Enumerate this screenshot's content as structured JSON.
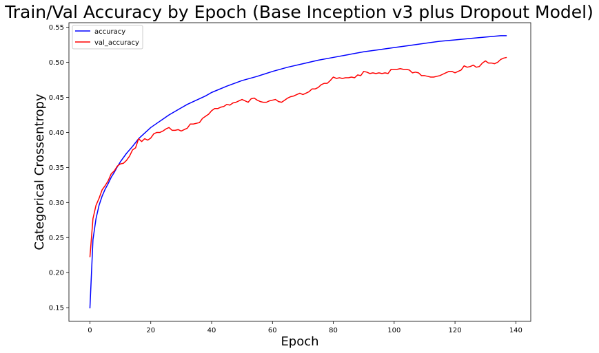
{
  "chart_data": {
    "type": "line",
    "title": "Train/Val Accuracy by Epoch (Base Inception v3 plus Dropout Model)",
    "xlabel": "Epoch",
    "ylabel": "Categorical Crossentropy",
    "xlim": [
      -6.9,
      144.9
    ],
    "ylim": [
      0.1305,
      0.5565
    ],
    "xticks": [
      0,
      20,
      40,
      60,
      80,
      100,
      120,
      140
    ],
    "yticks": [
      0.15,
      0.2,
      0.25,
      0.3,
      0.35,
      0.4,
      0.45,
      0.5,
      0.55
    ],
    "grid": false,
    "legend_position": "top-left",
    "series": [
      {
        "name": "accuracy",
        "color": "#0000ff",
        "points": [
          [
            0,
            0.149
          ],
          [
            1,
            0.247
          ],
          [
            2,
            0.277
          ],
          [
            3,
            0.296
          ],
          [
            4,
            0.309
          ],
          [
            5,
            0.319
          ],
          [
            6,
            0.327
          ],
          [
            7,
            0.336
          ],
          [
            8,
            0.343
          ],
          [
            9,
            0.351
          ],
          [
            10,
            0.358
          ],
          [
            12,
            0.37
          ],
          [
            14,
            0.38
          ],
          [
            16,
            0.391
          ],
          [
            18,
            0.399
          ],
          [
            20,
            0.407
          ],
          [
            22,
            0.413
          ],
          [
            24,
            0.419
          ],
          [
            26,
            0.425
          ],
          [
            28,
            0.43
          ],
          [
            30,
            0.435
          ],
          [
            32,
            0.44
          ],
          [
            35,
            0.446
          ],
          [
            38,
            0.452
          ],
          [
            40,
            0.457
          ],
          [
            45,
            0.466
          ],
          [
            50,
            0.474
          ],
          [
            55,
            0.48
          ],
          [
            60,
            0.487
          ],
          [
            65,
            0.493
          ],
          [
            70,
            0.498
          ],
          [
            75,
            0.503
          ],
          [
            80,
            0.507
          ],
          [
            85,
            0.511
          ],
          [
            90,
            0.515
          ],
          [
            95,
            0.518
          ],
          [
            100,
            0.521
          ],
          [
            105,
            0.524
          ],
          [
            110,
            0.527
          ],
          [
            115,
            0.53
          ],
          [
            120,
            0.532
          ],
          [
            125,
            0.534
          ],
          [
            130,
            0.536
          ],
          [
            135,
            0.538
          ],
          [
            137,
            0.538
          ]
        ]
      },
      {
        "name": "val_accuracy",
        "color": "#ff0000",
        "points": [
          [
            0,
            0.222
          ],
          [
            1,
            0.277
          ],
          [
            2,
            0.296
          ],
          [
            3,
            0.306
          ],
          [
            4,
            0.318
          ],
          [
            5,
            0.324
          ],
          [
            6,
            0.331
          ],
          [
            7,
            0.341
          ],
          [
            8,
            0.345
          ],
          [
            9,
            0.352
          ],
          [
            10,
            0.355
          ],
          [
            11,
            0.356
          ],
          [
            12,
            0.36
          ],
          [
            13,
            0.366
          ],
          [
            14,
            0.375
          ],
          [
            15,
            0.378
          ],
          [
            16,
            0.391
          ],
          [
            17,
            0.387
          ],
          [
            18,
            0.391
          ],
          [
            19,
            0.389
          ],
          [
            20,
            0.392
          ],
          [
            21,
            0.398
          ],
          [
            22,
            0.4
          ],
          [
            23,
            0.4
          ],
          [
            24,
            0.402
          ],
          [
            25,
            0.405
          ],
          [
            26,
            0.407
          ],
          [
            27,
            0.403
          ],
          [
            28,
            0.403
          ],
          [
            29,
            0.404
          ],
          [
            30,
            0.402
          ],
          [
            31,
            0.404
          ],
          [
            32,
            0.406
          ],
          [
            33,
            0.412
          ],
          [
            34,
            0.412
          ],
          [
            35,
            0.413
          ],
          [
            36,
            0.414
          ],
          [
            37,
            0.42
          ],
          [
            38,
            0.423
          ],
          [
            39,
            0.426
          ],
          [
            40,
            0.431
          ],
          [
            41,
            0.434
          ],
          [
            42,
            0.434
          ],
          [
            43,
            0.436
          ],
          [
            44,
            0.437
          ],
          [
            45,
            0.44
          ],
          [
            46,
            0.439
          ],
          [
            47,
            0.442
          ],
          [
            48,
            0.443
          ],
          [
            49,
            0.445
          ],
          [
            50,
            0.447
          ],
          [
            51,
            0.445
          ],
          [
            52,
            0.443
          ],
          [
            53,
            0.448
          ],
          [
            54,
            0.449
          ],
          [
            55,
            0.446
          ],
          [
            56,
            0.444
          ],
          [
            57,
            0.443
          ],
          [
            58,
            0.443
          ],
          [
            59,
            0.445
          ],
          [
            60,
            0.446
          ],
          [
            61,
            0.447
          ],
          [
            62,
            0.444
          ],
          [
            63,
            0.443
          ],
          [
            64,
            0.446
          ],
          [
            65,
            0.449
          ],
          [
            66,
            0.451
          ],
          [
            67,
            0.452
          ],
          [
            68,
            0.454
          ],
          [
            69,
            0.456
          ],
          [
            70,
            0.454
          ],
          [
            71,
            0.456
          ],
          [
            72,
            0.458
          ],
          [
            73,
            0.462
          ],
          [
            74,
            0.462
          ],
          [
            75,
            0.464
          ],
          [
            76,
            0.468
          ],
          [
            77,
            0.47
          ],
          [
            78,
            0.47
          ],
          [
            79,
            0.474
          ],
          [
            80,
            0.479
          ],
          [
            81,
            0.477
          ],
          [
            82,
            0.478
          ],
          [
            83,
            0.477
          ],
          [
            84,
            0.478
          ],
          [
            85,
            0.478
          ],
          [
            86,
            0.479
          ],
          [
            87,
            0.478
          ],
          [
            88,
            0.482
          ],
          [
            89,
            0.481
          ],
          [
            90,
            0.487
          ],
          [
            91,
            0.486
          ],
          [
            92,
            0.484
          ],
          [
            93,
            0.485
          ],
          [
            94,
            0.484
          ],
          [
            95,
            0.485
          ],
          [
            96,
            0.484
          ],
          [
            97,
            0.485
          ],
          [
            98,
            0.484
          ],
          [
            99,
            0.49
          ],
          [
            100,
            0.49
          ],
          [
            101,
            0.49
          ],
          [
            102,
            0.491
          ],
          [
            103,
            0.49
          ],
          [
            104,
            0.49
          ],
          [
            105,
            0.489
          ],
          [
            106,
            0.485
          ],
          [
            107,
            0.486
          ],
          [
            108,
            0.485
          ],
          [
            109,
            0.481
          ],
          [
            110,
            0.481
          ],
          [
            111,
            0.48
          ],
          [
            112,
            0.479
          ],
          [
            113,
            0.479
          ],
          [
            114,
            0.48
          ],
          [
            115,
            0.481
          ],
          [
            116,
            0.483
          ],
          [
            117,
            0.485
          ],
          [
            118,
            0.487
          ],
          [
            119,
            0.487
          ],
          [
            120,
            0.485
          ],
          [
            121,
            0.487
          ],
          [
            122,
            0.489
          ],
          [
            123,
            0.495
          ],
          [
            124,
            0.493
          ],
          [
            125,
            0.494
          ],
          [
            126,
            0.496
          ],
          [
            127,
            0.493
          ],
          [
            128,
            0.494
          ],
          [
            129,
            0.499
          ],
          [
            130,
            0.502
          ],
          [
            131,
            0.499
          ],
          [
            132,
            0.499
          ],
          [
            133,
            0.498
          ],
          [
            134,
            0.5
          ],
          [
            135,
            0.504
          ],
          [
            136,
            0.506
          ],
          [
            137,
            0.507
          ]
        ]
      }
    ]
  }
}
